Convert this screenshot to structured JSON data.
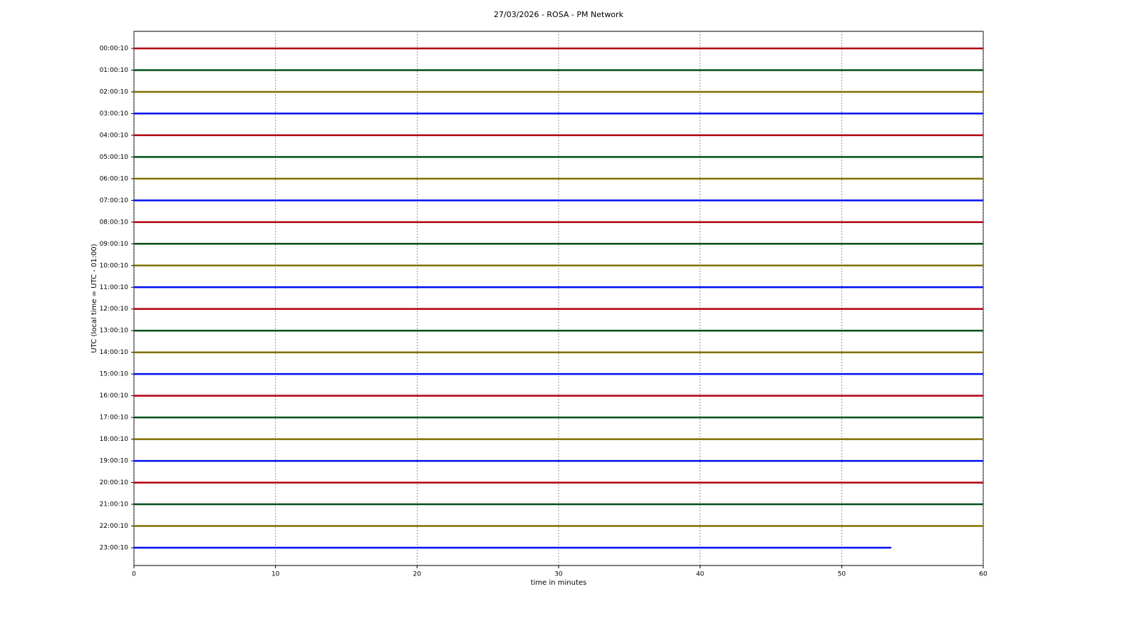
{
  "chart_data": {
    "type": "helicorder",
    "title": "27/03/2026 - ROSA - PM Network",
    "xlabel": "time in minutes",
    "ylabel": "UTC (local time = UTC - 01:00)",
    "xlim": [
      0,
      60
    ],
    "xticks": [
      0,
      10,
      20,
      30,
      40,
      50,
      60
    ],
    "grid": true,
    "colors": [
      "#b00010",
      "#00501a",
      "#807000",
      "#0010f0"
    ],
    "categories": [
      "00:00:10",
      "01:00:10",
      "02:00:10",
      "03:00:10",
      "04:00:10",
      "05:00:10",
      "06:00:10",
      "07:00:10",
      "08:00:10",
      "09:00:10",
      "10:00:10",
      "11:00:10",
      "12:00:10",
      "13:00:10",
      "14:00:10",
      "15:00:10",
      "16:00:10",
      "17:00:10",
      "18:00:10",
      "19:00:10",
      "20:00:10",
      "21:00:10",
      "22:00:10",
      "23:00:10"
    ],
    "values": [
      60,
      60,
      60,
      60,
      60,
      60,
      60,
      60,
      60,
      60,
      60,
      60,
      60,
      60,
      60,
      60,
      60,
      60,
      60,
      60,
      60,
      60,
      60,
      53.5
    ]
  }
}
